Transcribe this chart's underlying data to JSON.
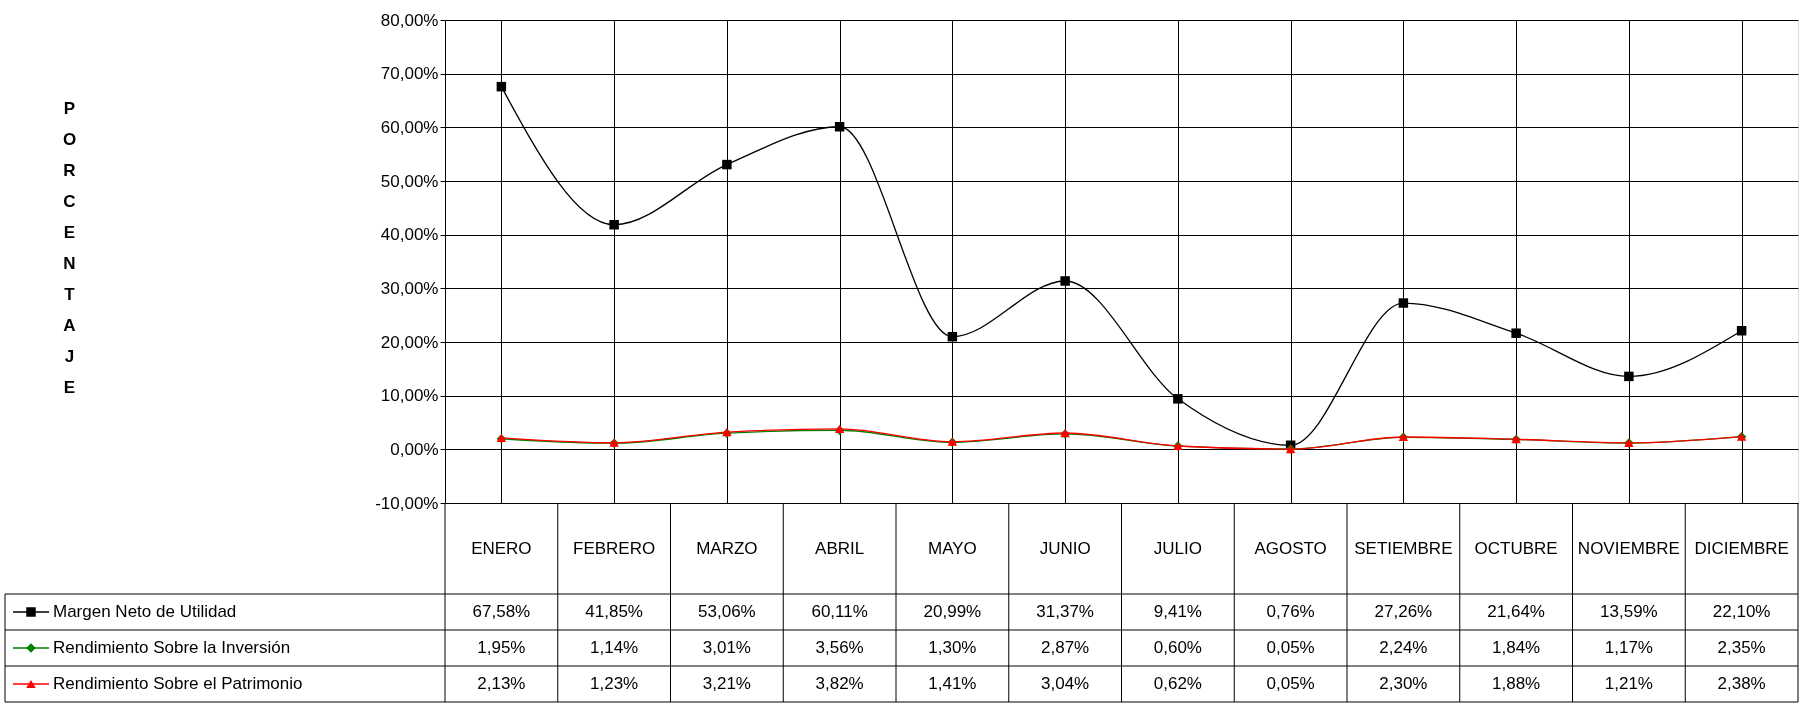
{
  "chart_data": {
    "type": "line",
    "ylabel": "PORCENTAJE",
    "categories": [
      "ENERO",
      "FEBRERO",
      "MARZO",
      "ABRIL",
      "MAYO",
      "JUNIO",
      "JULIO",
      "AGOSTO",
      "SETIEMBRE",
      "OCTUBRE",
      "NOVIEMBRE",
      "DICIEMBRE"
    ],
    "series": [
      {
        "name": "Margen Neto de Utilidad",
        "color": "#000000",
        "marker": "square",
        "values": [
          67.58,
          41.85,
          53.06,
          60.11,
          20.99,
          31.37,
          9.41,
          0.76,
          27.26,
          21.64,
          13.59,
          22.1
        ],
        "value_labels": [
          "67,58%",
          "41,85%",
          "53,06%",
          "60,11%",
          "20,99%",
          "31,37%",
          "9,41%",
          "0,76%",
          "27,26%",
          "21,64%",
          "13,59%",
          "22,10%"
        ]
      },
      {
        "name": "Rendimiento Sobre la Inversión",
        "color": "#008000",
        "marker": "diamond",
        "values": [
          1.95,
          1.14,
          3.01,
          3.56,
          1.3,
          2.87,
          0.6,
          0.05,
          2.24,
          1.84,
          1.17,
          2.35
        ],
        "value_labels": [
          "1,95%",
          "1,14%",
          "3,01%",
          "3,56%",
          "1,30%",
          "2,87%",
          "0,60%",
          "0,05%",
          "2,24%",
          "1,84%",
          "1,17%",
          "2,35%"
        ]
      },
      {
        "name": "Rendimiento Sobre el Patrimonio",
        "color": "#ff0000",
        "marker": "triangle",
        "values": [
          2.13,
          1.23,
          3.21,
          3.82,
          1.41,
          3.04,
          0.62,
          0.05,
          2.3,
          1.88,
          1.21,
          2.38
        ],
        "value_labels": [
          "2,13%",
          "1,23%",
          "3,21%",
          "3,82%",
          "1,41%",
          "3,04%",
          "0,62%",
          "0,05%",
          "2,30%",
          "1,88%",
          "1,21%",
          "2,38%"
        ]
      }
    ],
    "ylim": [
      -10,
      80
    ],
    "yticks": [
      {
        "value": -10,
        "label": "-10,00%"
      },
      {
        "value": 0,
        "label": "0,00%"
      },
      {
        "value": 10,
        "label": "10,00%"
      },
      {
        "value": 20,
        "label": "20,00%"
      },
      {
        "value": 30,
        "label": "30,00%"
      },
      {
        "value": 40,
        "label": "40,00%"
      },
      {
        "value": 50,
        "label": "50,00%"
      },
      {
        "value": 60,
        "label": "60,00%"
      },
      {
        "value": 70,
        "label": "70,00%"
      },
      {
        "value": 80,
        "label": "80,00%"
      }
    ],
    "grid": true,
    "legend": "bottom",
    "line_style": "solid"
  }
}
